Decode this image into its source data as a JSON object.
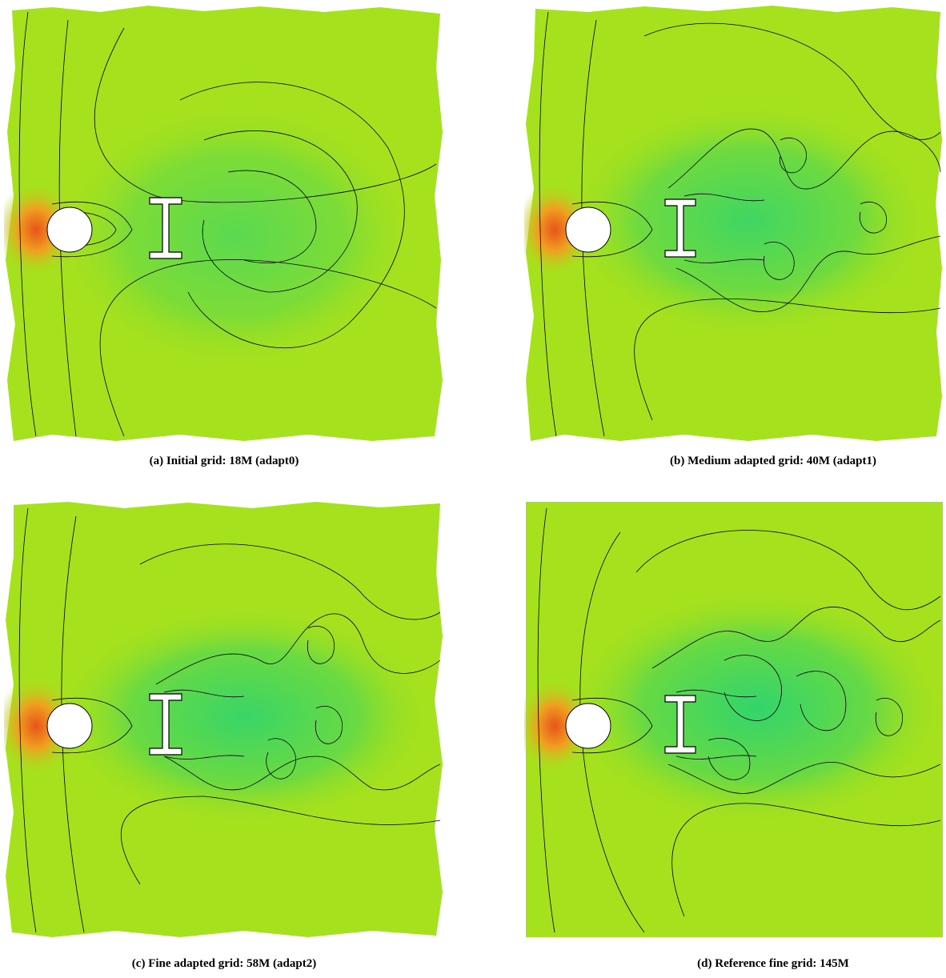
{
  "figure": {
    "panels": [
      {
        "id": "a",
        "caption": "(a)  Initial grid: 18M (adapt0)"
      },
      {
        "id": "b",
        "caption": "(b)  Medium adapted grid: 40M (adapt1)"
      },
      {
        "id": "c",
        "caption": "(c)  Fine adapted grid: 58M (adapt2)"
      },
      {
        "id": "d",
        "caption": "(d)  Reference fine grid: 145M"
      }
    ],
    "colors": {
      "background_field": "#a6e11d",
      "wake_low": "#1ed27a",
      "stagnation_high": "#e8541a",
      "contour_line": "#000000",
      "body_fill": "#ffffff"
    },
    "icons": [
      "circular-cylinder-icon",
      "i-beam-icon"
    ]
  }
}
